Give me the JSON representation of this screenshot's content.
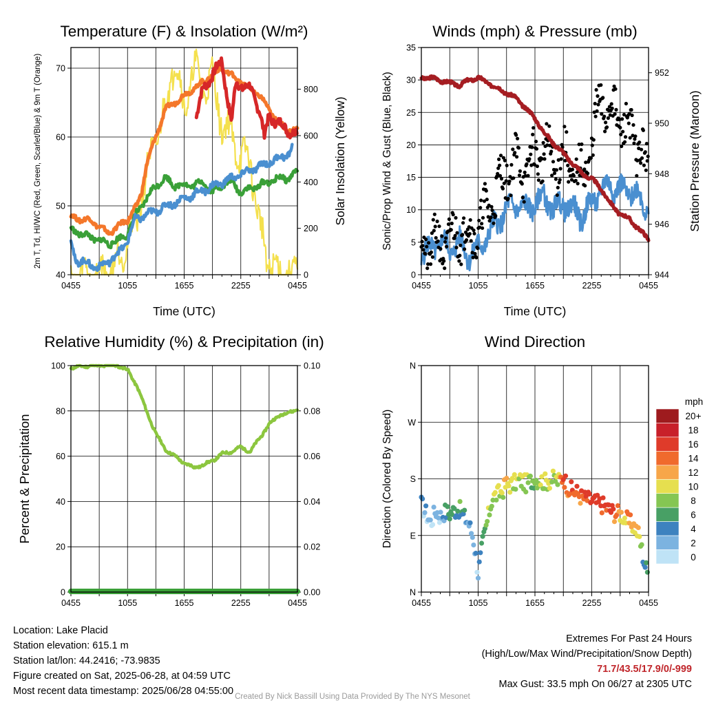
{
  "chart_data": [
    {
      "type": "line",
      "title": "Temperature (F) & Insolation (W/m²)",
      "xlabel": "Time (UTC)",
      "ylabel": "2m T, Td, HI/WC (Red, Green, Scarlet/Blue) & 9m T (Orange)",
      "y2label": "Solar Insolation (Yellow)",
      "x_ticks": [
        "0455",
        "1055",
        "1655",
        "2255",
        "0455"
      ],
      "ylim": [
        40,
        73
      ],
      "y_ticks": [
        40,
        50,
        60,
        70
      ],
      "y2lim": [
        0,
        980
      ],
      "y2_ticks": [
        0,
        200,
        400,
        600,
        800
      ],
      "series": [
        {
          "color": "#d62728",
          "x": [
            13.3,
            14,
            15,
            16,
            17,
            17.5,
            18,
            19,
            20,
            20.5,
            21,
            22,
            23,
            24
          ],
          "values": [
            63,
            67,
            69,
            71,
            62,
            68,
            67.5,
            67,
            64,
            60,
            63,
            62,
            61,
            60.5
          ]
        },
        {
          "color": "#f4772b",
          "x": [
            0,
            1,
            2,
            3,
            4,
            5,
            6,
            7,
            7.5,
            8,
            9,
            10,
            11,
            12,
            13,
            14,
            15,
            16,
            17,
            18,
            19,
            20,
            21,
            22,
            23,
            24
          ],
          "values": [
            48.5,
            48,
            48,
            47,
            46,
            47,
            48,
            50,
            52,
            56,
            60,
            64,
            65,
            66,
            67,
            68,
            69,
            70,
            69,
            68,
            67,
            66,
            64,
            62,
            61,
            61
          ]
        },
        {
          "color": "#3aa038",
          "x": [
            0,
            1,
            2,
            3,
            4,
            5,
            6,
            7,
            8,
            9,
            10,
            11,
            12,
            13,
            14,
            15,
            16,
            17,
            18,
            19,
            20,
            21,
            22,
            23,
            24
          ],
          "values": [
            46.5,
            46,
            45.5,
            45,
            44.5,
            45,
            46,
            49,
            51,
            53,
            54,
            53,
            53,
            53,
            53.5,
            52,
            53,
            53.5,
            52,
            52.5,
            53,
            53.5,
            54,
            54,
            55
          ]
        },
        {
          "color": "#4a8fd0",
          "x": [
            0,
            0.5,
            1,
            2,
            3,
            4,
            5,
            6,
            6.8,
            23,
            23.5
          ],
          "values": [
            45,
            42,
            42,
            41.5,
            41,
            42,
            43,
            45,
            48,
            57.5,
            58.5
          ]
        },
        {
          "color": "#f4e04d",
          "x": [
            0,
            2,
            3,
            4,
            5,
            6,
            7,
            7.5,
            8,
            9,
            10,
            11,
            12,
            13,
            14,
            15,
            16,
            17,
            18,
            19,
            19.5,
            20,
            21,
            22,
            23,
            24
          ],
          "values": [
            0,
            0,
            0,
            10,
            60,
            150,
            250,
            350,
            420,
            600,
            700,
            950,
            700,
            900,
            800,
            850,
            650,
            600,
            500,
            500,
            350,
            200,
            60,
            0,
            0,
            0
          ]
        }
      ]
    },
    {
      "type": "line",
      "title": "Winds (mph) & Pressure (mb)",
      "xlabel": "Time (UTC)",
      "ylabel": "Sonic/Prop Wind & Gust (Blue, Black)",
      "y2label": "Station Pressure (Maroon)",
      "x_ticks": [
        "0455",
        "1055",
        "1655",
        "2255",
        "0455"
      ],
      "ylim": [
        0,
        35
      ],
      "y_ticks": [
        0,
        5,
        10,
        15,
        20,
        25,
        30,
        35
      ],
      "y2lim": [
        944,
        953
      ],
      "y2_ticks": [
        944,
        946,
        948,
        950,
        952
      ],
      "series": [
        {
          "color": "#4a8fd0",
          "x": [
            0,
            1,
            2,
            3,
            4,
            5,
            6,
            7,
            8,
            9,
            10,
            11,
            12,
            13,
            14,
            15,
            16,
            17,
            18,
            19,
            20,
            21,
            22,
            23,
            24
          ],
          "values": [
            3,
            4,
            5,
            4,
            5,
            3,
            4,
            6,
            8,
            10,
            11,
            10,
            11,
            12,
            10,
            11,
            10,
            9,
            11,
            13,
            14,
            13,
            13,
            12,
            10
          ]
        },
        {
          "color": "#000000",
          "x": [
            0,
            1,
            2,
            3,
            4,
            5,
            6,
            7,
            8,
            9,
            10,
            11,
            12,
            13,
            14,
            15,
            16,
            17,
            18,
            19,
            20,
            21,
            22,
            23,
            24
          ],
          "values": [
            5,
            4,
            5,
            5,
            7,
            6,
            7,
            10,
            13,
            16,
            17,
            16,
            18,
            19,
            17,
            18,
            16,
            15,
            20,
            27,
            25,
            24,
            22,
            20,
            15
          ]
        },
        {
          "color": "#a51d22",
          "x": [
            0,
            1,
            2,
            3,
            4,
            5,
            6,
            7,
            8,
            9,
            10,
            11,
            12,
            13,
            14,
            15,
            16,
            17,
            18,
            19,
            20,
            21,
            22,
            23,
            24
          ],
          "values": [
            951.8,
            951.8,
            951.7,
            951.6,
            951.5,
            951.7,
            951.8,
            951.6,
            951.4,
            951.2,
            951.0,
            950.6,
            950.2,
            949.6,
            949.2,
            948.8,
            948.4,
            948.0,
            947.8,
            947.4,
            946.8,
            946.4,
            946.2,
            945.8,
            945.4
          ]
        }
      ]
    },
    {
      "type": "line",
      "title": "Relative Humidity (%) & Precipitation (in)",
      "ylabel": "Percent & Precipitation",
      "x_ticks": [
        "0455",
        "1055",
        "1655",
        "2255",
        "0455"
      ],
      "ylim": [
        0,
        100
      ],
      "y_ticks": [
        0,
        20,
        40,
        60,
        80,
        100
      ],
      "y2lim": [
        0,
        0.1
      ],
      "y2_ticks": [
        "0.00",
        "0.02",
        "0.04",
        "0.06",
        "0.08",
        "0.10"
      ],
      "series": [
        {
          "color": "#8cc63f",
          "x": [
            0,
            1,
            2,
            3,
            4,
            5,
            6,
            7,
            8,
            9,
            10,
            11,
            12,
            13,
            14,
            15,
            16,
            17,
            18,
            19,
            20,
            21,
            22,
            23,
            24
          ],
          "values": [
            99,
            99.5,
            100,
            100,
            100,
            100,
            98,
            91,
            80,
            70,
            63,
            60,
            57,
            55,
            56,
            58,
            61,
            62,
            64,
            62,
            68,
            74,
            78,
            79,
            81
          ]
        },
        {
          "color": "#3aa038",
          "x": [
            0,
            24
          ],
          "values": [
            0,
            0
          ]
        }
      ]
    },
    {
      "type": "scatter",
      "title": "Wind Direction",
      "ylabel": "Direction (Colored By Speed)",
      "x_ticks": [
        "0455",
        "1055",
        "1655",
        "2255",
        "0455"
      ],
      "y_ticks": [
        "N",
        "E",
        "S",
        "W",
        "N"
      ],
      "ylim": [
        0,
        360
      ],
      "colorbar": {
        "title": "mph",
        "labels": [
          "20+",
          "18",
          "16",
          "14",
          "12",
          "10",
          "8",
          "6",
          "4",
          "2",
          "0"
        ],
        "colors": [
          "#9e1b1e",
          "#c8202a",
          "#df3b2a",
          "#f06a2d",
          "#f7a649",
          "#e6df4f",
          "#85c653",
          "#48a065",
          "#3d82bf",
          "#7cb3e0",
          "#bfe3f6"
        ]
      },
      "series": [
        {
          "x": [
            0,
            0.5,
            1,
            1.5,
            2,
            2.5,
            3,
            3.5,
            4,
            4.5,
            5,
            5.5,
            6,
            6.5,
            7,
            7.5,
            8,
            8.5,
            9,
            9.5,
            10,
            10.5,
            11,
            11.5,
            12,
            12.5,
            13,
            13.5,
            14,
            14.5,
            15,
            15.5,
            16,
            16.5,
            17,
            17.5,
            18,
            18.5,
            19,
            19.5,
            20,
            20.5,
            21,
            21.5,
            22,
            22.5,
            23,
            23.5,
            24
          ],
          "values": [
            140,
            125,
            110,
            130,
            120,
            128,
            125,
            130,
            132,
            120,
            110,
            85,
            30,
            80,
            115,
            150,
            155,
            160,
            172,
            170,
            175,
            178,
            172,
            176,
            180,
            178,
            175,
            177,
            180,
            176,
            184,
            166,
            160,
            158,
            150,
            148,
            145,
            142,
            140,
            135,
            130,
            125,
            125,
            118,
            110,
            105,
            90,
            50,
            25
          ],
          "speed": [
            3,
            3,
            2,
            3,
            3,
            6,
            7,
            6,
            7,
            5,
            4,
            4,
            3,
            6,
            9,
            10,
            10,
            11,
            12,
            11,
            10,
            9,
            10,
            8,
            9,
            11,
            10,
            12,
            9,
            10,
            18,
            15,
            16,
            15,
            15,
            16,
            17,
            16,
            17,
            16,
            17,
            15,
            13,
            12,
            14,
            12,
            11,
            6,
            6
          ]
        }
      ]
    }
  ],
  "info": {
    "location": "Location: Lake Placid",
    "elevation": "Station elevation: 615.1 m",
    "latlon": "Station lat/lon: 44.2416; -73.9835",
    "created": "Figure created on Sat, 2025-06-28, at 04:59 UTC",
    "recent": "Most recent data timestamp: 2025/06/28 04:55:00"
  },
  "extremes": {
    "title": "Extremes For Past 24 Hours",
    "subtitle": "(High/Low/Max Wind/Precipitation/Snow Depth)",
    "values": "71.7/43.5/17.9/0/-999",
    "gust": "Max Gust: 33.5 mph On 06/27 at 2305 UTC"
  },
  "credit": "Created By Nick Bassill Using Data Provided By The NYS Mesonet"
}
